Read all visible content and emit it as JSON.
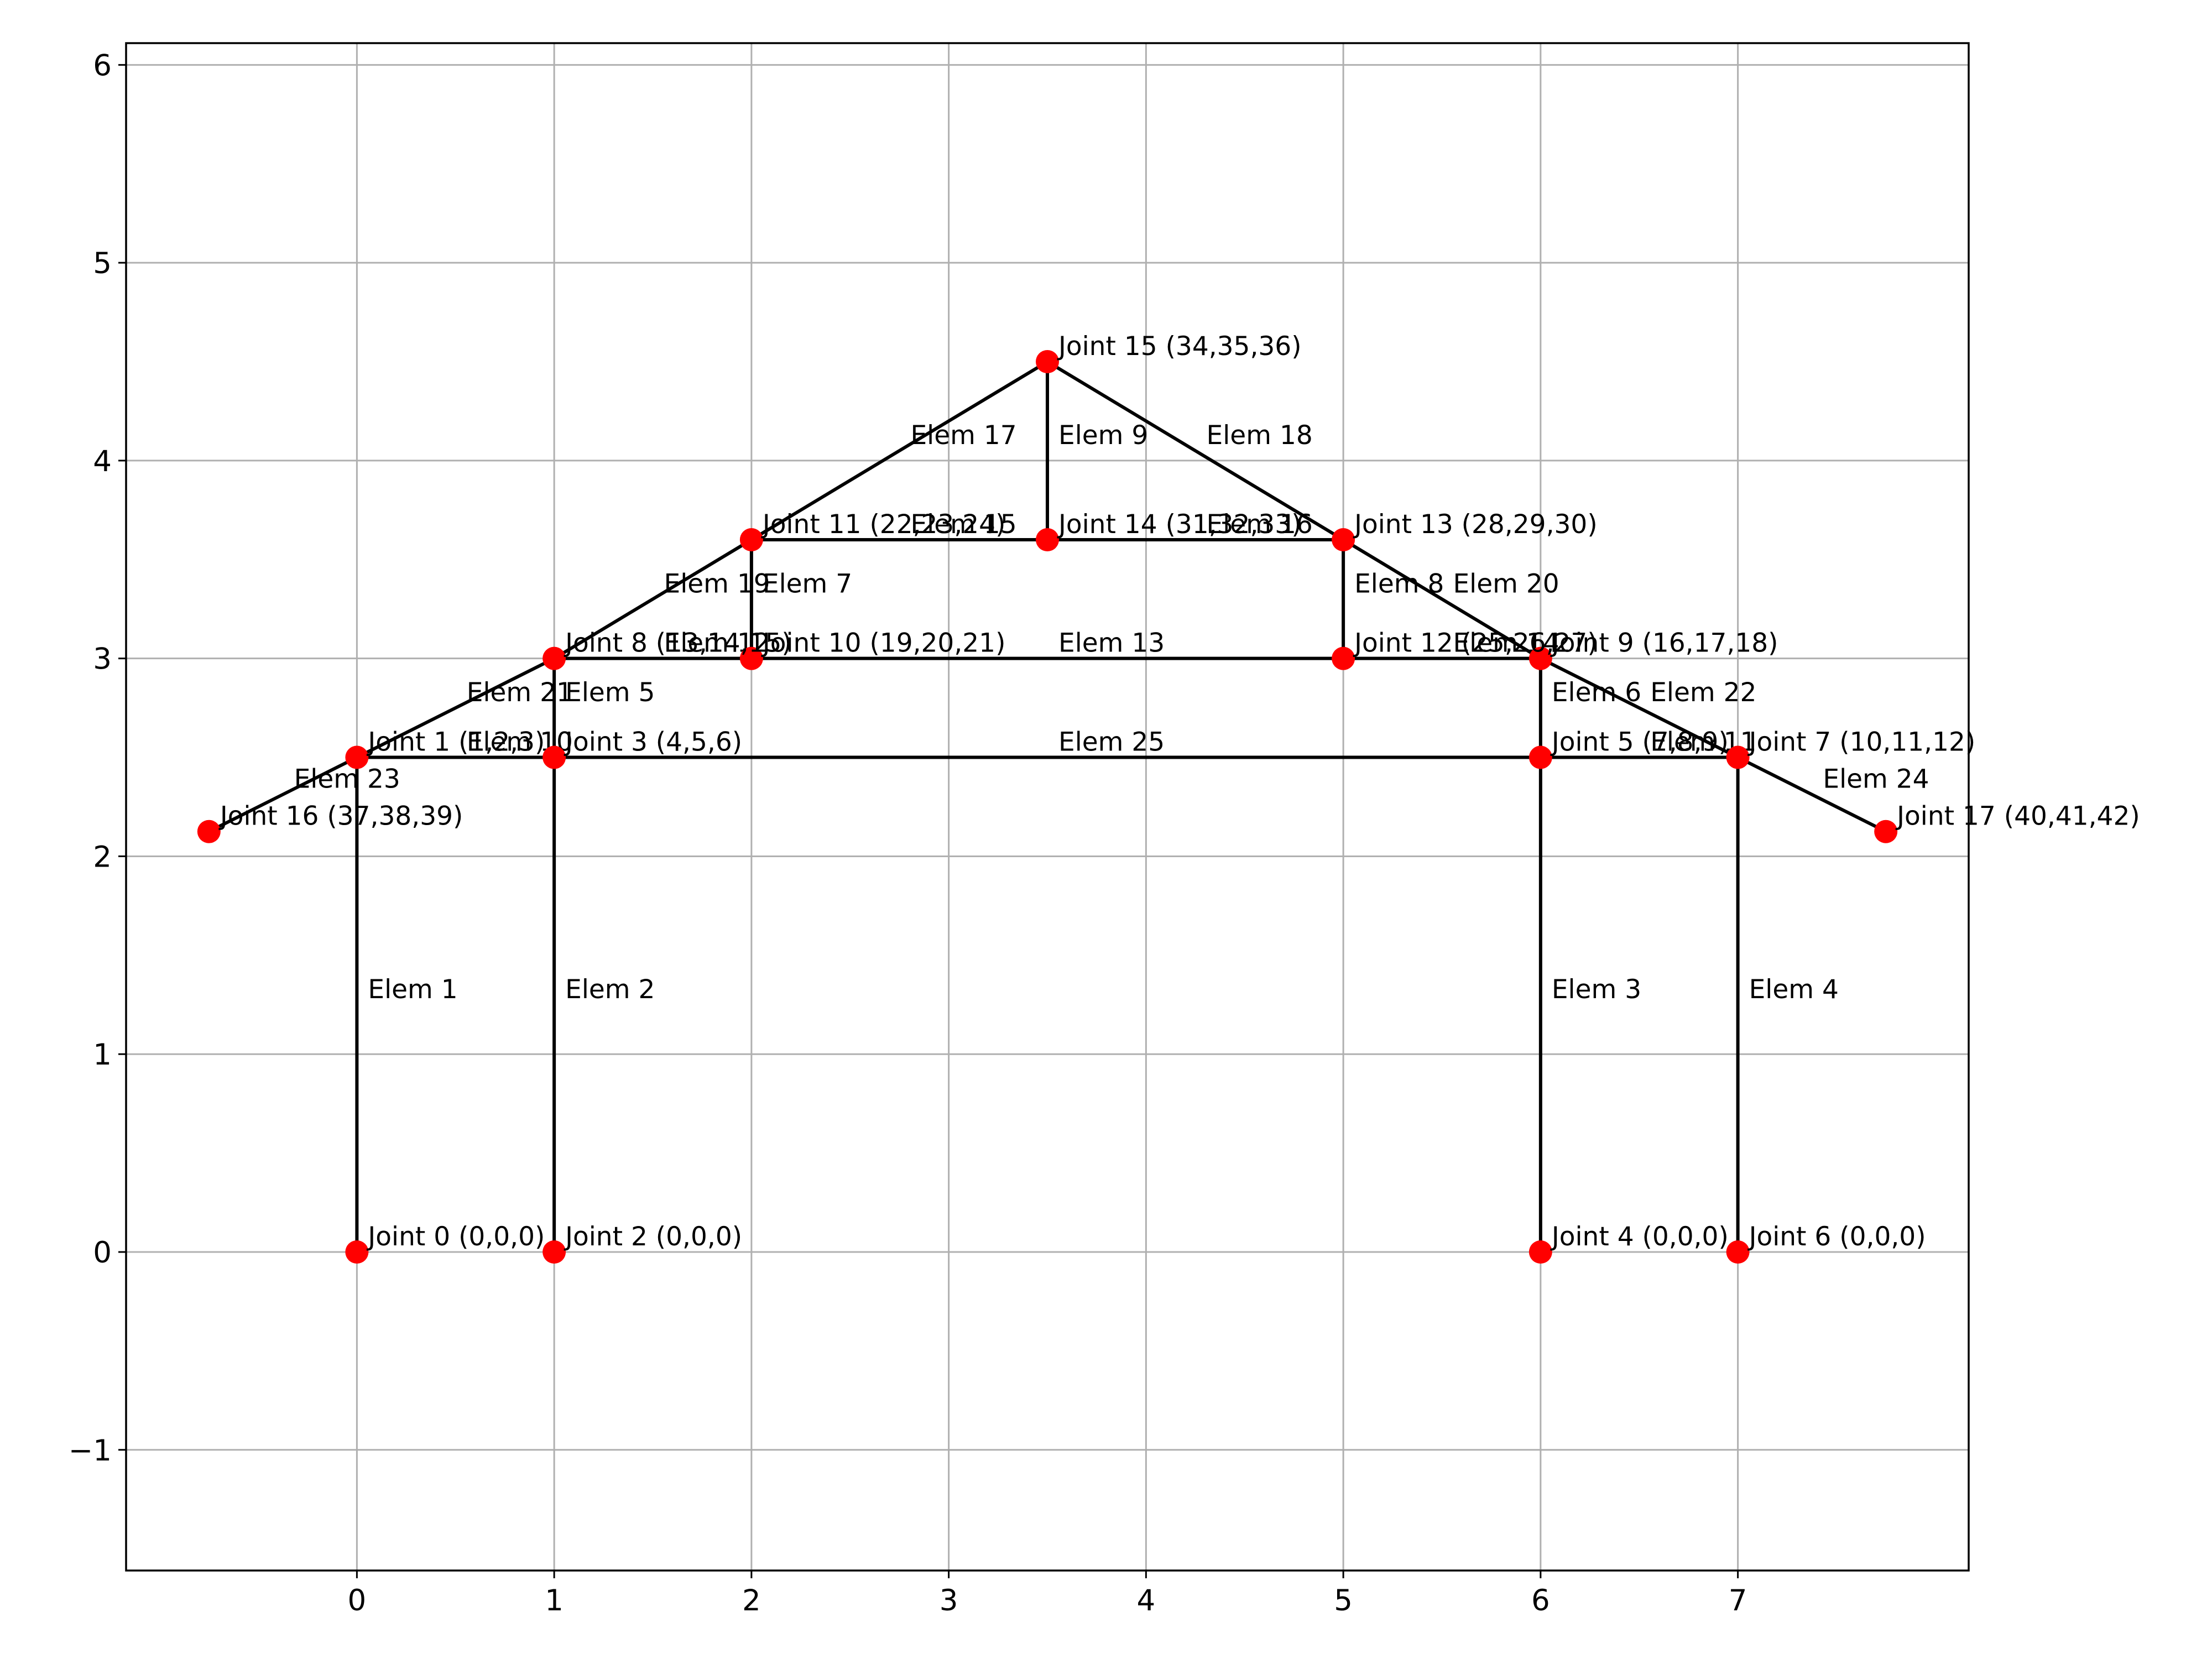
{
  "colors": {
    "joint": "#ff0000",
    "member": "#000000",
    "grid": "#b0b0b0"
  },
  "chart_data": {
    "type": "diagram",
    "xlim": [
      -1.17,
      8.17
    ],
    "ylim": [
      -1.61,
      6.11
    ],
    "grid": true,
    "xticks": [
      {
        "value": 0,
        "label": "0"
      },
      {
        "value": 1,
        "label": "1"
      },
      {
        "value": 2,
        "label": "2"
      },
      {
        "value": 3,
        "label": "3"
      },
      {
        "value": 4,
        "label": "4"
      },
      {
        "value": 5,
        "label": "5"
      },
      {
        "value": 6,
        "label": "6"
      },
      {
        "value": 7,
        "label": "7"
      }
    ],
    "yticks": [
      {
        "value": -1,
        "label": "−1"
      },
      {
        "value": 0,
        "label": "0"
      },
      {
        "value": 1,
        "label": "1"
      },
      {
        "value": 2,
        "label": "2"
      },
      {
        "value": 3,
        "label": "3"
      },
      {
        "value": 4,
        "label": "4"
      },
      {
        "value": 5,
        "label": "5"
      },
      {
        "value": 6,
        "label": "6"
      }
    ],
    "joints": [
      {
        "id": 0,
        "x": 0,
        "y": 0,
        "label": "Joint 0 (0,0,0)"
      },
      {
        "id": 1,
        "x": 0,
        "y": 2.5,
        "label": "Joint 1 (1,2,3)"
      },
      {
        "id": 2,
        "x": 1,
        "y": 0,
        "label": "Joint 2 (0,0,0)"
      },
      {
        "id": 3,
        "x": 1,
        "y": 2.5,
        "label": "Joint 3 (4,5,6)"
      },
      {
        "id": 4,
        "x": 6,
        "y": 0,
        "label": "Joint 4 (0,0,0)"
      },
      {
        "id": 5,
        "x": 6,
        "y": 2.5,
        "label": "Joint 5 (7,8,9)"
      },
      {
        "id": 6,
        "x": 7,
        "y": 0,
        "label": "Joint 6 (0,0,0)"
      },
      {
        "id": 7,
        "x": 7,
        "y": 2.5,
        "label": "Joint 7 (10,11,12)"
      },
      {
        "id": 8,
        "x": 1,
        "y": 3,
        "label": "Joint 8 (13,14,15)"
      },
      {
        "id": 9,
        "x": 6,
        "y": 3,
        "label": "Joint 9 (16,17,18)"
      },
      {
        "id": 10,
        "x": 2,
        "y": 3,
        "label": "Joint 10 (19,20,21)"
      },
      {
        "id": 11,
        "x": 2,
        "y": 3.6,
        "label": "Joint 11 (22,23,24)"
      },
      {
        "id": 12,
        "x": 5,
        "y": 3,
        "label": "Joint 12 (25,26,27)"
      },
      {
        "id": 13,
        "x": 5,
        "y": 3.6,
        "label": "Joint 13 (28,29,30)"
      },
      {
        "id": 14,
        "x": 3.5,
        "y": 3.6,
        "label": "Joint 14 (31,32,33)"
      },
      {
        "id": 15,
        "x": 3.5,
        "y": 4.5,
        "label": "Joint 15 (34,35,36)"
      },
      {
        "id": 16,
        "x": -0.75,
        "y": 2.125,
        "label": "Joint 16 (37,38,39)"
      },
      {
        "id": 17,
        "x": 7.75,
        "y": 2.125,
        "label": "Joint 17 (40,41,42)"
      }
    ],
    "elements": [
      {
        "id": 1,
        "from": 0,
        "to": 1,
        "label": "Elem 1"
      },
      {
        "id": 2,
        "from": 2,
        "to": 3,
        "label": "Elem 2"
      },
      {
        "id": 3,
        "from": 4,
        "to": 5,
        "label": "Elem 3"
      },
      {
        "id": 4,
        "from": 6,
        "to": 7,
        "label": "Elem 4"
      },
      {
        "id": 5,
        "from": 3,
        "to": 8,
        "label": "Elem 5"
      },
      {
        "id": 6,
        "from": 5,
        "to": 9,
        "label": "Elem 6"
      },
      {
        "id": 7,
        "from": 10,
        "to": 11,
        "label": "Elem 7"
      },
      {
        "id": 8,
        "from": 12,
        "to": 13,
        "label": "Elem 8"
      },
      {
        "id": 9,
        "from": 14,
        "to": 15,
        "label": "Elem 9"
      },
      {
        "id": 10,
        "from": 1,
        "to": 3,
        "label": "Elem 10"
      },
      {
        "id": 11,
        "from": 5,
        "to": 7,
        "label": "Elem 11"
      },
      {
        "id": 12,
        "from": 8,
        "to": 10,
        "label": "Elem 12"
      },
      {
        "id": 13,
        "from": 10,
        "to": 12,
        "label": "Elem 13"
      },
      {
        "id": 14,
        "from": 12,
        "to": 9,
        "label": "Elem 14"
      },
      {
        "id": 15,
        "from": 11,
        "to": 14,
        "label": "Elem 15"
      },
      {
        "id": 16,
        "from": 14,
        "to": 13,
        "label": "Elem 16"
      },
      {
        "id": 17,
        "from": 11,
        "to": 15,
        "label": "Elem 17"
      },
      {
        "id": 18,
        "from": 15,
        "to": 13,
        "label": "Elem 18"
      },
      {
        "id": 19,
        "from": 8,
        "to": 11,
        "label": "Elem 19"
      },
      {
        "id": 20,
        "from": 13,
        "to": 9,
        "label": "Elem 20"
      },
      {
        "id": 21,
        "from": 1,
        "to": 8,
        "label": "Elem 21"
      },
      {
        "id": 22,
        "from": 9,
        "to": 7,
        "label": "Elem 22"
      },
      {
        "id": 23,
        "from": 16,
        "to": 1,
        "label": "Elem 23"
      },
      {
        "id": 24,
        "from": 7,
        "to": 17,
        "label": "Elem 24"
      },
      {
        "id": 25,
        "from": 3,
        "to": 5,
        "label": "Elem 25"
      }
    ]
  }
}
